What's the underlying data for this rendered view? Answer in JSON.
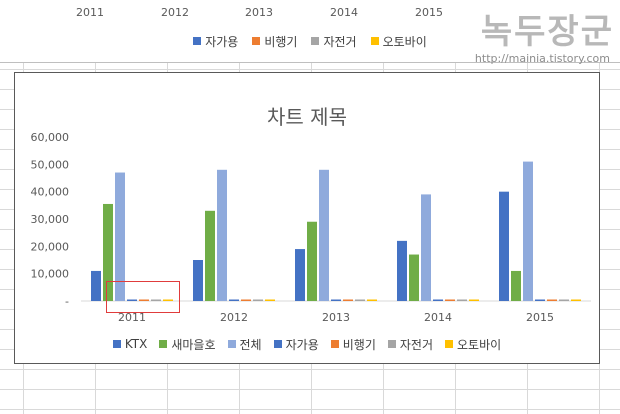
{
  "top_chart": {
    "years": [
      "2011",
      "2012",
      "2013",
      "2014",
      "2015"
    ],
    "legend": [
      {
        "label": "자가용",
        "color": "#4472c4"
      },
      {
        "label": "비행기",
        "color": "#ed7d31"
      },
      {
        "label": "자전거",
        "color": "#a5a5a5"
      },
      {
        "label": "오토바이",
        "color": "#ffc000"
      }
    ]
  },
  "watermark": {
    "title": "녹두장군",
    "url": "http://mainia.tistory.com"
  },
  "chart_data": {
    "type": "bar",
    "title": "차트 제목",
    "categories": [
      "2011",
      "2012",
      "2013",
      "2014",
      "2015"
    ],
    "ylim": [
      0,
      60000
    ],
    "yticks": [
      "-",
      "10,000",
      "20,000",
      "30,000",
      "40,000",
      "50,000",
      "60,000"
    ],
    "legend_position": "bottom",
    "grid": false,
    "series": [
      {
        "name": "KTX",
        "color": "#4472c4",
        "values": [
          11000,
          15000,
          19000,
          22000,
          40000
        ]
      },
      {
        "name": "새마을호",
        "color": "#70ad47",
        "values": [
          35500,
          33000,
          29000,
          17000,
          11000
        ]
      },
      {
        "name": "전체",
        "color": "#8faadc",
        "values": [
          47000,
          48000,
          48000,
          39000,
          51000
        ]
      },
      {
        "name": "자가용",
        "color": "#4472c4",
        "values": [
          200,
          200,
          200,
          200,
          200
        ]
      },
      {
        "name": "비행기",
        "color": "#ed7d31",
        "values": [
          200,
          200,
          200,
          200,
          200
        ]
      },
      {
        "name": "자전거",
        "color": "#a5a5a5",
        "values": [
          200,
          200,
          200,
          200,
          200
        ]
      },
      {
        "name": "오토바이",
        "color": "#ffc000",
        "values": [
          200,
          200,
          200,
          200,
          200
        ]
      }
    ]
  }
}
